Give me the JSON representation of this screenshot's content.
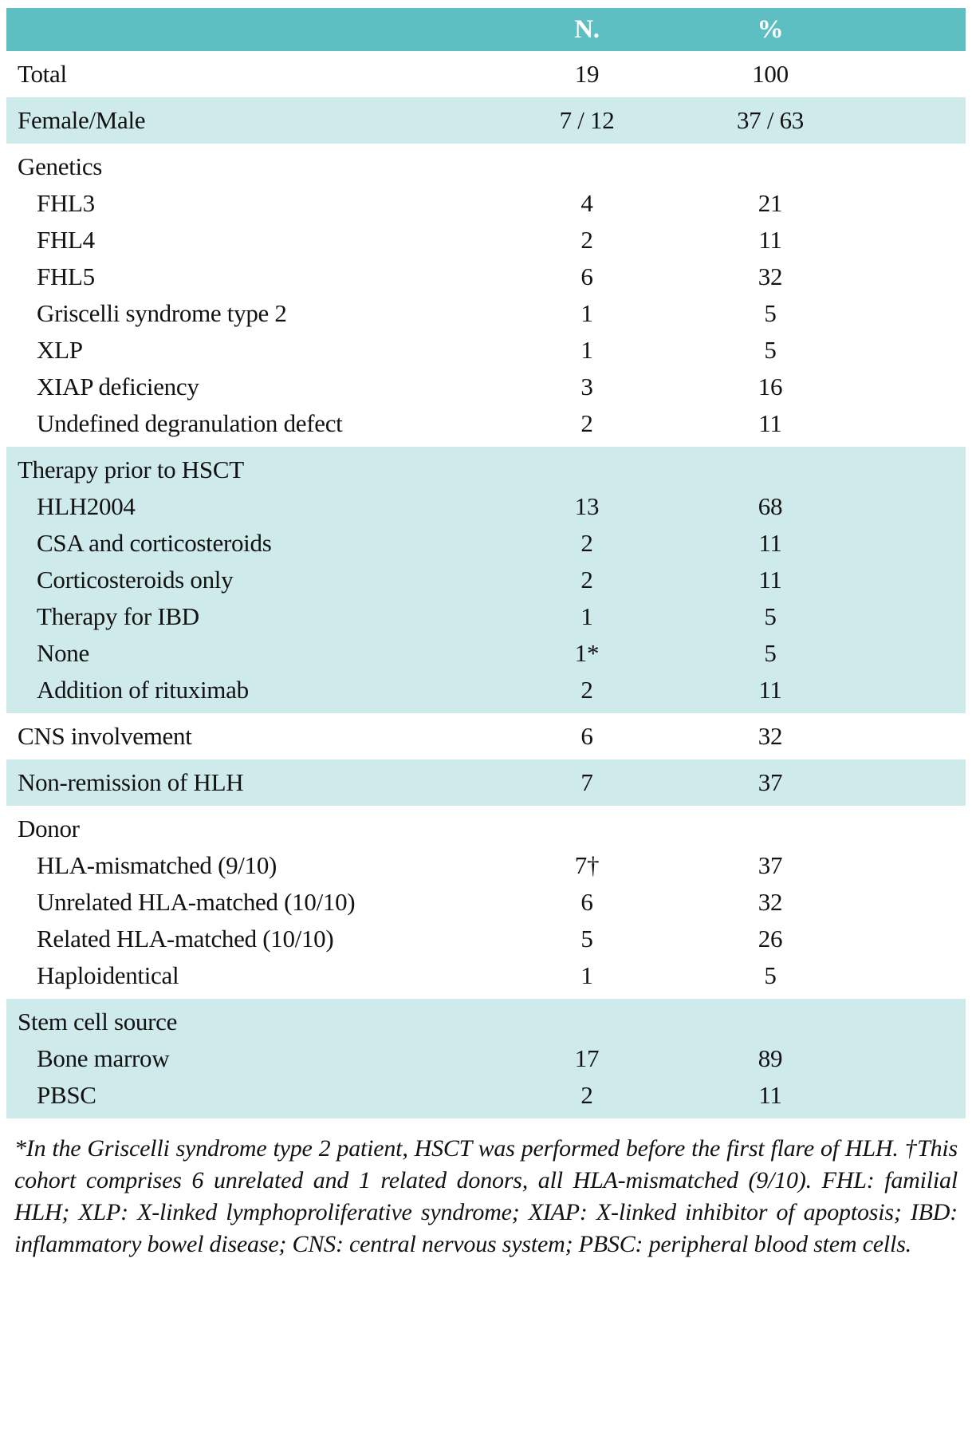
{
  "colors": {
    "header_bg": "#5ebfc3",
    "shaded_bg": "#cfeaeb",
    "text": "#121212",
    "header_text": "#ffffff"
  },
  "table": {
    "columns": [
      "N.",
      "%"
    ],
    "sections": [
      {
        "shaded": false,
        "rows": [
          {
            "label": "Total",
            "n": "19",
            "pct": "100"
          }
        ]
      },
      {
        "shaded": true,
        "rows": [
          {
            "label": "Female/Male",
            "n": "7 / 12",
            "pct": "37 / 63"
          }
        ]
      },
      {
        "shaded": false,
        "rows": [
          {
            "label": "Genetics",
            "header": true
          },
          {
            "label": "FHL3",
            "n": "4",
            "pct": "21",
            "indent": true
          },
          {
            "label": "FHL4",
            "n": "2",
            "pct": "11",
            "indent": true
          },
          {
            "label": "FHL5",
            "n": "6",
            "pct": "32",
            "indent": true
          },
          {
            "label": "Griscelli syndrome type 2",
            "n": "1",
            "pct": "5",
            "indent": true
          },
          {
            "label": "XLP",
            "n": "1",
            "pct": "5",
            "indent": true
          },
          {
            "label": "XIAP deficiency",
            "n": "3",
            "pct": "16",
            "indent": true
          },
          {
            "label": "Undefined degranulation defect",
            "n": "2",
            "pct": "11",
            "indent": true
          }
        ]
      },
      {
        "shaded": true,
        "rows": [
          {
            "label": "Therapy prior to HSCT",
            "header": true
          },
          {
            "label": "HLH2004",
            "n": "13",
            "pct": "68",
            "indent": true
          },
          {
            "label": "CSA and corticosteroids",
            "n": "2",
            "pct": "11",
            "indent": true
          },
          {
            "label": "Corticosteroids only",
            "n": "2",
            "pct": "11",
            "indent": true
          },
          {
            "label": "Therapy for IBD",
            "n": "1",
            "pct": "5",
            "indent": true
          },
          {
            "label": "None",
            "n": "1*",
            "pct": "5",
            "indent": true
          },
          {
            "label": "Addition of rituximab",
            "n": "2",
            "pct": "11",
            "indent": true
          }
        ]
      },
      {
        "shaded": false,
        "rows": [
          {
            "label": "CNS involvement",
            "n": "6",
            "pct": "32"
          }
        ]
      },
      {
        "shaded": true,
        "rows": [
          {
            "label": "Non-remission of HLH",
            "n": "7",
            "pct": "37"
          }
        ]
      },
      {
        "shaded": false,
        "rows": [
          {
            "label": "Donor",
            "header": true
          },
          {
            "label": "HLA-mismatched (9/10)",
            "n": "7†",
            "pct": "37",
            "indent": true
          },
          {
            "label": "Unrelated HLA-matched (10/10)",
            "n": "6",
            "pct": "32",
            "indent": true
          },
          {
            "label": "Related HLA-matched (10/10)",
            "n": "5",
            "pct": "26",
            "indent": true
          },
          {
            "label": "Haploidentical",
            "n": "1",
            "pct": "5",
            "indent": true
          }
        ]
      },
      {
        "shaded": true,
        "rows": [
          {
            "label": "Stem cell source",
            "header": true
          },
          {
            "label": "Bone marrow",
            "n": "17",
            "pct": "89",
            "indent": true
          },
          {
            "label": "PBSC",
            "n": "2",
            "pct": "11",
            "indent": true
          }
        ]
      }
    ]
  },
  "footnote": "*In the Griscelli syndrome type 2 patient, HSCT was performed before the first flare of HLH. †This cohort comprises 6 unrelated and 1 related donors, all HLA-mismatched (9/10). FHL: familial HLH; XLP: X-linked lymphoproliferative syndrome; XIAP: X-linked inhibitor of apoptosis; IBD: inflammatory bowel disease; CNS: central nervous system; PBSC: peripheral blood stem cells."
}
